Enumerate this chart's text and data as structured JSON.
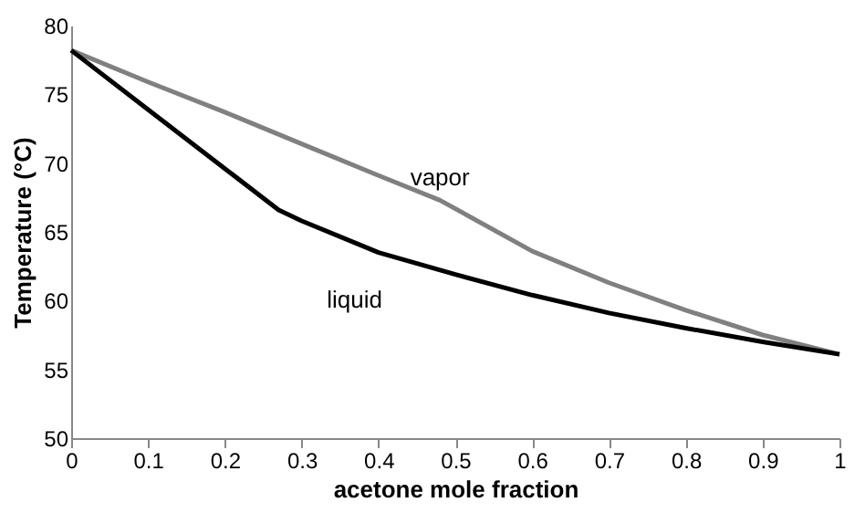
{
  "chart_data": {
    "type": "line",
    "xlabel": "acetone mole fraction",
    "ylabel": "Temperature (°C)",
    "xlim": [
      0,
      1
    ],
    "xticks": [
      0,
      0.1,
      0.2,
      0.3,
      0.4,
      0.5,
      0.6,
      0.7,
      0.8,
      0.9,
      1
    ],
    "ylim": [
      50,
      80
    ],
    "yticks": [
      50,
      55,
      60,
      65,
      70,
      75,
      80
    ],
    "grid": false,
    "legend": false,
    "marker": "none",
    "line_style": "solid",
    "series": [
      {
        "name": "vapor",
        "color": "#808080",
        "x": [
          0,
          0.1,
          0.2,
          0.3,
          0.4,
          0.48,
          0.6,
          0.7,
          0.8,
          0.9,
          1
        ],
        "values": [
          78.2,
          75.9,
          73.7,
          71.4,
          69.1,
          67.3,
          63.6,
          61.3,
          59.3,
          57.5,
          56.1
        ]
      },
      {
        "name": "liquid",
        "color": "#000000",
        "x": [
          0,
          0.1,
          0.2,
          0.27,
          0.3,
          0.4,
          0.5,
          0.6,
          0.7,
          0.8,
          0.9,
          1
        ],
        "values": [
          78.2,
          73.9,
          69.6,
          66.6,
          65.8,
          63.5,
          61.9,
          60.4,
          59.1,
          58,
          57,
          56.1
        ]
      }
    ]
  }
}
